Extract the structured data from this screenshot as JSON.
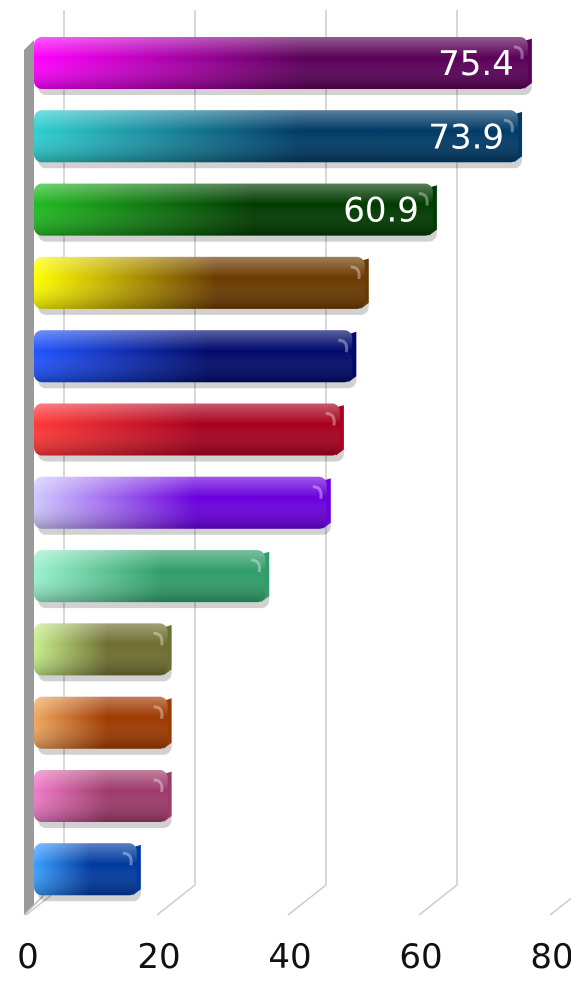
{
  "chart_data": {
    "type": "bar",
    "orientation": "horizontal",
    "title": "",
    "xlabel": "",
    "ylabel": "",
    "xlim": [
      0,
      80
    ],
    "x_ticks": [
      "0",
      "20",
      "40",
      "60",
      "80"
    ],
    "grid": true,
    "legend": "none",
    "style": "3d",
    "values": [
      75.4,
      73.9,
      60.9,
      50.5,
      48.6,
      46.7,
      44.7,
      35.3,
      20.4,
      20.4,
      20.4,
      15.7
    ],
    "data_labels": [
      "75.4",
      "73.9",
      "60.9",
      "",
      "",
      "",
      "",
      "",
      "",
      "",
      "",
      ""
    ],
    "bar_colors": [
      [
        "#ff00ff",
        "#5a0058"
      ],
      [
        "#2fcfcf",
        "#003a66"
      ],
      [
        "#22bb22",
        "#003a00"
      ],
      [
        "#ffff00",
        "#6b3a00"
      ],
      [
        "#2255ff",
        "#000a6b"
      ],
      [
        "#ff3838",
        "#a8001e"
      ],
      [
        "#d0c8ff",
        "#6a00dd"
      ],
      [
        "#9af2cf",
        "#2f9e68"
      ],
      [
        "#c8f08a",
        "#6e6e30"
      ],
      [
        "#f0a860",
        "#9e3a00"
      ],
      [
        "#f07ac8",
        "#9e3a6a"
      ],
      [
        "#3aa0ff",
        "#003aa0"
      ]
    ]
  }
}
